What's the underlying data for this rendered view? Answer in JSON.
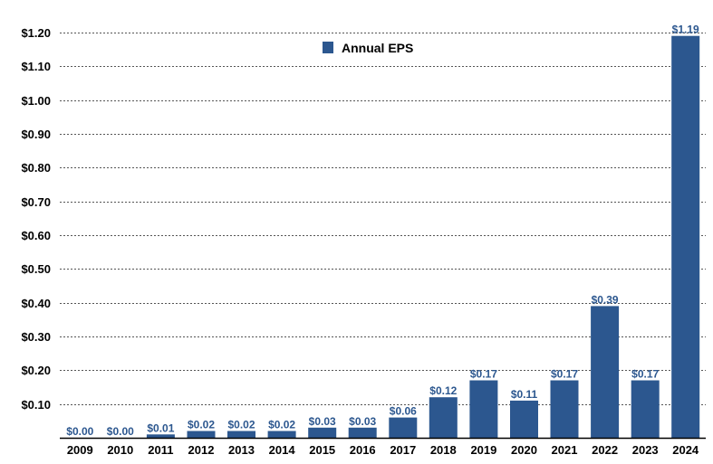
{
  "chart_data": {
    "type": "bar",
    "title": "",
    "xlabel": "",
    "ylabel": "",
    "categories": [
      "2009",
      "2010",
      "2011",
      "2012",
      "2013",
      "2014",
      "2015",
      "2016",
      "2017",
      "2018",
      "2019",
      "2020",
      "2021",
      "2022",
      "2023",
      "2024"
    ],
    "series": [
      {
        "name": "Annual EPS",
        "values": [
          0.0,
          0.0,
          0.01,
          0.02,
          0.02,
          0.02,
          0.03,
          0.03,
          0.06,
          0.12,
          0.17,
          0.11,
          0.17,
          0.39,
          0.17,
          1.19
        ],
        "data_labels": [
          "$0.00",
          "$0.00",
          "$0.01",
          "$0.02",
          "$0.02",
          "$0.02",
          "$0.03",
          "$0.03",
          "$0.06",
          "$0.12",
          "$0.17",
          "$0.11",
          "$0.17",
          "$0.39",
          "$0.17",
          "$1.19"
        ]
      }
    ],
    "y_ticks": [
      0.1,
      0.2,
      0.3,
      0.4,
      0.5,
      0.6,
      0.7,
      0.8,
      0.9,
      1.0,
      1.1,
      1.2
    ],
    "y_tick_labels": [
      "$0.10",
      "$0.20",
      "$0.30",
      "$0.40",
      "$0.50",
      "$0.60",
      "$0.70",
      "$0.80",
      "$0.90",
      "$1.00",
      "$1.10",
      "$1.20"
    ],
    "ylim": [
      0,
      1.2
    ],
    "grid": true,
    "grid_style": "dotted horizontal",
    "legend": {
      "placement": "top-center",
      "label": "Annual EPS"
    },
    "colors": {
      "bar": "#2c578f",
      "value_label": "#2c578f",
      "axis_text": "#000000"
    }
  }
}
